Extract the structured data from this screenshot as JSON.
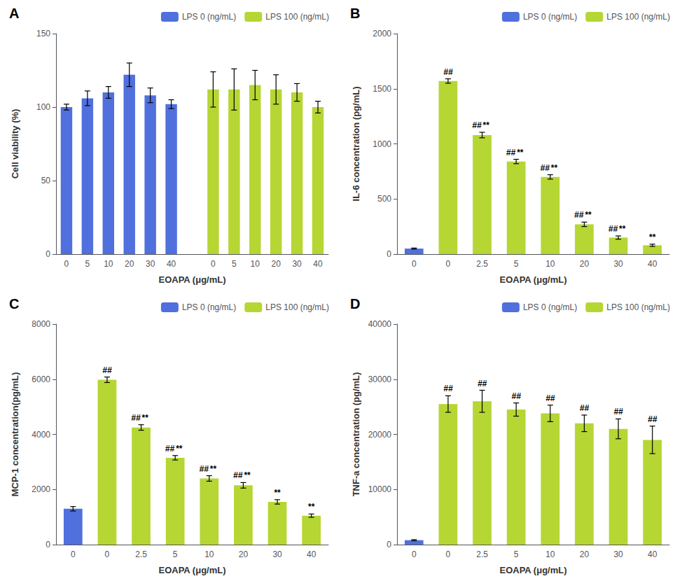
{
  "chart_data": [
    {
      "type": "bar",
      "title": "A",
      "xlabel": "EOAPA (μg/mL)",
      "ylabel": "Cell viability (%)",
      "categories": [
        "0",
        "5",
        "10",
        "20",
        "30",
        "40",
        null,
        "0",
        "5",
        "10",
        "20",
        "30",
        "40"
      ],
      "series": [
        {
          "name": "LPS 0 (ng/mL)",
          "values": [
            100,
            106,
            110,
            122,
            108,
            102,
            null,
            null,
            null,
            null,
            null,
            null,
            null
          ],
          "errors": [
            2,
            5,
            4,
            8,
            5,
            3,
            null,
            null,
            null,
            null,
            null,
            null,
            null
          ]
        },
        {
          "name": "LPS 100 (ng/mL)",
          "values": [
            null,
            null,
            null,
            null,
            null,
            null,
            null,
            112,
            112,
            115,
            112,
            110,
            100
          ],
          "errors": [
            null,
            null,
            null,
            null,
            null,
            null,
            null,
            12,
            14,
            10,
            10,
            6,
            4
          ]
        }
      ],
      "ylim": [
        0,
        150
      ],
      "yticks": [
        0,
        50,
        100,
        150
      ],
      "grid": false,
      "legend": "upper right"
    },
    {
      "type": "bar",
      "title": "B",
      "xlabel": "EOAPA (μg/mL)",
      "ylabel": "IL-6 concentration (pg/mL)",
      "categories": [
        "0",
        "0",
        "2.5",
        "5",
        "10",
        "20",
        "30",
        "40"
      ],
      "series": [
        {
          "name": "LPS 0 (ng/mL)",
          "values": [
            50,
            null,
            null,
            null,
            null,
            null,
            null,
            null
          ],
          "errors": [
            5,
            null,
            null,
            null,
            null,
            null,
            null,
            null
          ]
        },
        {
          "name": "LPS 100 (ng/mL)",
          "values": [
            null,
            1570,
            1080,
            840,
            700,
            270,
            150,
            80
          ],
          "errors": [
            null,
            20,
            25,
            20,
            20,
            20,
            15,
            10
          ]
        }
      ],
      "annotations": [
        {
          "text": "##",
          "index": 1
        },
        {
          "text": "##",
          "index": 2
        },
        {
          "text": "##",
          "index": 3
        },
        {
          "text": "##",
          "index": 4
        },
        {
          "text": "##",
          "index": 5
        },
        {
          "text": "##",
          "index": 6
        },
        {
          "text": "**",
          "index": 2
        },
        {
          "text": "**",
          "index": 3
        },
        {
          "text": "**",
          "index": 4
        },
        {
          "text": "**",
          "index": 5
        },
        {
          "text": "**",
          "index": 6
        },
        {
          "text": "**",
          "index": 7
        }
      ],
      "ylim": [
        0,
        2000
      ],
      "yticks": [
        0,
        500,
        1000,
        1500,
        2000
      ],
      "grid": false,
      "legend": "upper right"
    },
    {
      "type": "bar",
      "title": "C",
      "xlabel": "EOAPA (μg/mL)",
      "ylabel": "MCP-1 concentration(pg/mL)",
      "categories": [
        "0",
        "0",
        "2.5",
        "5",
        "10",
        "20",
        "30",
        "40"
      ],
      "series": [
        {
          "name": "LPS 0 (ng/mL)",
          "values": [
            1300,
            null,
            null,
            null,
            null,
            null,
            null,
            null
          ],
          "errors": [
            80,
            null,
            null,
            null,
            null,
            null,
            null,
            null
          ]
        },
        {
          "name": "LPS 100 (ng/mL)",
          "values": [
            null,
            5980,
            4250,
            3150,
            2400,
            2150,
            1550,
            1050
          ],
          "errors": [
            null,
            100,
            100,
            80,
            100,
            100,
            80,
            60
          ]
        }
      ],
      "annotations": [
        {
          "text": "##",
          "index": 1
        },
        {
          "text": "##",
          "index": 2
        },
        {
          "text": "##",
          "index": 3
        },
        {
          "text": "##",
          "index": 4
        },
        {
          "text": "##",
          "index": 5
        },
        {
          "text": "**",
          "index": 2
        },
        {
          "text": "**",
          "index": 3
        },
        {
          "text": "**",
          "index": 4
        },
        {
          "text": "**",
          "index": 5
        },
        {
          "text": "**",
          "index": 6
        },
        {
          "text": "**",
          "index": 7
        }
      ],
      "ylim": [
        0,
        8000
      ],
      "yticks": [
        0,
        2000,
        4000,
        6000,
        8000
      ],
      "grid": false,
      "legend": "upper right"
    },
    {
      "type": "bar",
      "title": "D",
      "xlabel": "EOAPA (μg/mL)",
      "ylabel": "TNF-a concentration (pg/mL)",
      "categories": [
        "0",
        "0",
        "2.5",
        "5",
        "10",
        "20",
        "30",
        "40"
      ],
      "series": [
        {
          "name": "LPS 0 (ng/mL)",
          "values": [
            800,
            null,
            null,
            null,
            null,
            null,
            null,
            null
          ],
          "errors": [
            100,
            null,
            null,
            null,
            null,
            null,
            null,
            null
          ]
        },
        {
          "name": "LPS 100 (ng/mL)",
          "values": [
            null,
            25500,
            26000,
            24500,
            23800,
            22000,
            21000,
            19000
          ],
          "errors": [
            null,
            1500,
            2000,
            1200,
            1500,
            1500,
            1800,
            2500
          ]
        }
      ],
      "annotations": [
        {
          "text": "##",
          "index": 1
        },
        {
          "text": "##",
          "index": 2
        },
        {
          "text": "##",
          "index": 3
        },
        {
          "text": "##",
          "index": 4
        },
        {
          "text": "##",
          "index": 5
        },
        {
          "text": "##",
          "index": 6
        },
        {
          "text": "##",
          "index": 7
        }
      ],
      "ylim": [
        0,
        40000
      ],
      "yticks": [
        0,
        10000,
        20000,
        30000,
        40000
      ],
      "grid": false,
      "legend": "upper right"
    }
  ]
}
